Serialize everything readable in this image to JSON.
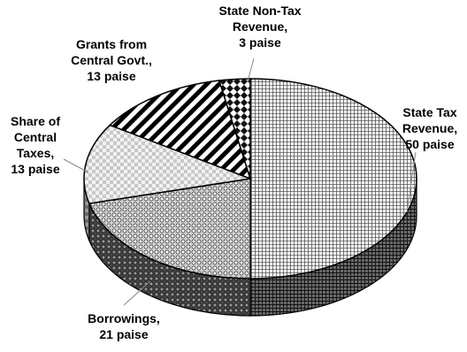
{
  "chart_data": {
    "type": "pie",
    "title": "",
    "unit": "paise",
    "slices": [
      {
        "name": "State Tax Revenue",
        "value": 50,
        "label_lines": [
          "State Tax",
          "Revenue,",
          "50 paise"
        ],
        "pattern": "fine-grid"
      },
      {
        "name": "Borrowings",
        "value": 21,
        "label_lines": [
          "Borrowings,",
          "21 paise"
        ],
        "pattern": "dots"
      },
      {
        "name": "Share of Central Taxes",
        "value": 13,
        "label_lines": [
          "Share of",
          "Central",
          "Taxes,",
          "13 paise"
        ],
        "pattern": "light-checks"
      },
      {
        "name": "Grants from Central Govt.",
        "value": 13,
        "label_lines": [
          "Grants from",
          "Central Govt.,",
          "13 paise"
        ],
        "pattern": "diagonal-stripes"
      },
      {
        "name": "State Non-Tax Revenue",
        "value": 3,
        "label_lines": [
          "State Non-Tax",
          "Revenue,",
          "3 paise"
        ],
        "pattern": "diamonds"
      }
    ],
    "legend": "none",
    "style": "3d-pie, black and white patterns"
  }
}
